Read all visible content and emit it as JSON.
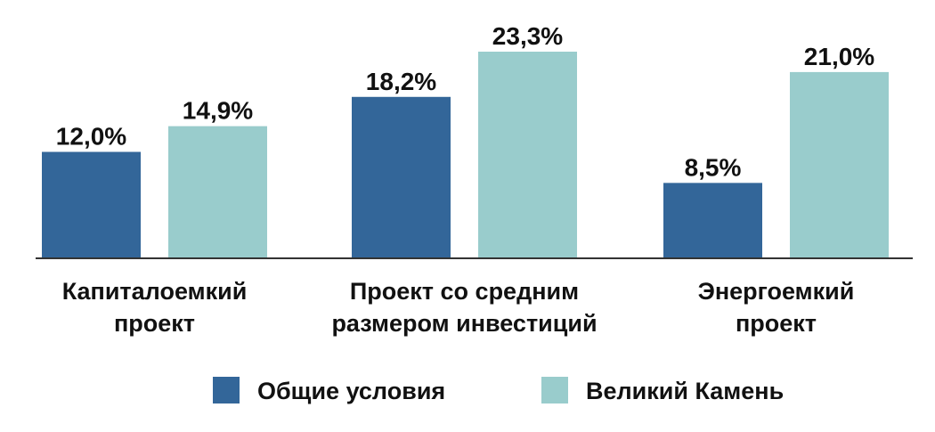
{
  "chart_data": {
    "type": "bar",
    "categories": [
      [
        "Капиталоемкий",
        "проект"
      ],
      [
        "Проект со средним",
        "размером инвестиций"
      ],
      [
        "Энергоемкий",
        "проект"
      ]
    ],
    "series": [
      {
        "name": "Общие условия",
        "values": [
          12.0,
          18.2,
          8.5
        ],
        "labels": [
          "12,0%",
          "18,2%",
          "8,5%"
        ],
        "color": "#336699"
      },
      {
        "name": "Великий Камень",
        "values": [
          14.9,
          23.3,
          21.0
        ],
        "labels": [
          "14,9%",
          "23,3%",
          "21,0%"
        ],
        "color": "#99CCCC"
      }
    ],
    "ylim": [
      0,
      25
    ],
    "grid": false,
    "legend": "bottom-center",
    "axis_color": "#333333"
  }
}
